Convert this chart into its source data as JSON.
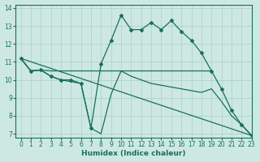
{
  "bg_color": "#cde8e2",
  "line_color": "#1a6e5e",
  "grid_color": "#aacfc8",
  "xlabel": "Humidex (Indice chaleur)",
  "xlim": [
    -0.5,
    23
  ],
  "ylim": [
    6.8,
    14.2
  ],
  "yticks": [
    7,
    8,
    9,
    10,
    11,
    12,
    13,
    14
  ],
  "xticks": [
    0,
    1,
    2,
    3,
    4,
    5,
    6,
    7,
    8,
    9,
    10,
    11,
    12,
    13,
    14,
    15,
    16,
    17,
    18,
    19,
    20,
    21,
    22,
    23
  ],
  "line1_x": [
    0,
    1,
    2,
    3,
    4,
    5,
    6,
    7,
    8,
    9,
    10,
    11,
    12,
    13,
    14,
    15,
    16,
    17,
    18,
    19
  ],
  "line1_y": [
    11.2,
    10.5,
    10.55,
    10.5,
    10.5,
    10.5,
    10.5,
    10.5,
    10.5,
    10.5,
    10.5,
    10.5,
    10.5,
    10.5,
    10.5,
    10.5,
    10.5,
    10.5,
    10.5,
    10.5
  ],
  "line2_x": [
    0,
    1,
    2,
    3,
    4,
    5,
    6,
    7,
    8,
    9,
    10,
    11,
    12,
    13,
    14,
    15,
    16,
    17,
    18,
    19,
    20,
    21,
    22,
    23
  ],
  "line2_y": [
    11.2,
    10.5,
    10.55,
    10.2,
    10.0,
    10.0,
    9.8,
    7.3,
    10.9,
    12.2,
    13.6,
    12.8,
    12.8,
    13.2,
    12.8,
    13.3,
    12.7,
    12.2,
    11.5,
    10.5,
    9.5,
    8.3,
    7.5,
    6.9
  ],
  "line3_x": [
    0,
    23
  ],
  "line3_y": [
    11.2,
    6.9
  ],
  "line4_x": [
    0,
    1,
    2,
    3,
    4,
    5,
    6,
    7,
    8,
    9,
    10,
    11,
    12,
    13,
    14,
    15,
    16,
    17,
    18,
    19,
    20,
    21,
    22,
    23
  ],
  "line4_y": [
    11.2,
    10.5,
    10.55,
    10.2,
    10.0,
    9.9,
    9.8,
    7.3,
    7.0,
    9.2,
    10.5,
    10.2,
    10.0,
    9.8,
    9.7,
    9.6,
    9.5,
    9.4,
    9.3,
    9.5,
    8.8,
    8.0,
    7.5,
    6.9
  ]
}
